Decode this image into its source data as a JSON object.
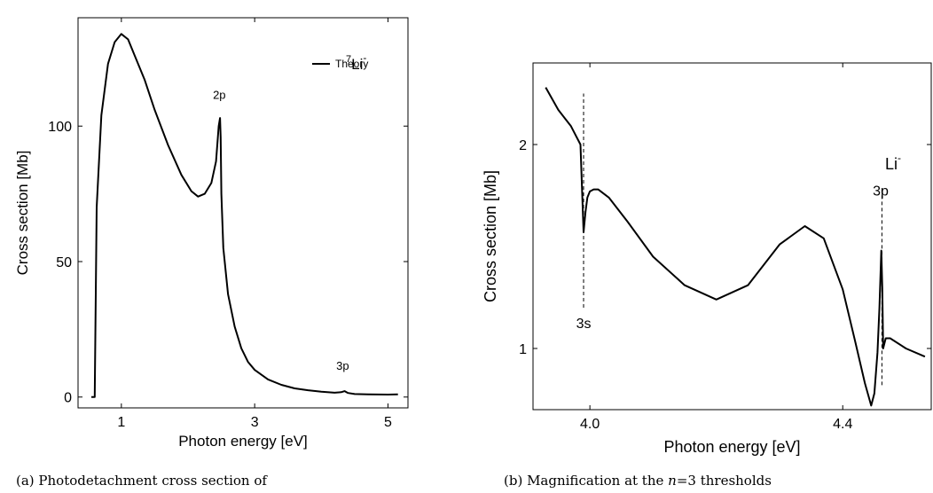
{
  "chart_data": [
    {
      "type": "line",
      "xlabel": "Photon energy [eV]",
      "ylabel": "Cross section [Mb]",
      "xlim": [
        0.35,
        5.3
      ],
      "ylim": [
        -4,
        140
      ],
      "xticks": [
        1,
        3,
        5
      ],
      "xtick_labels": [
        "1",
        "3",
        "5"
      ],
      "yticks": [
        0,
        50,
        100
      ],
      "ytick_labels": [
        "0",
        "50",
        "100"
      ],
      "legend": {
        "entries": [
          "Theory"
        ],
        "position": "top-right"
      },
      "annotations": [
        {
          "text": "2p",
          "x": 2.47,
          "y": 110
        },
        {
          "text": "3p",
          "x": 4.32,
          "y": 10
        }
      ],
      "species_label": {
        "sup": "7",
        "base": "Li",
        "charge": "-"
      },
      "series": [
        {
          "name": "Theory",
          "x": [
            0.55,
            0.6,
            0.63,
            0.7,
            0.8,
            0.9,
            1.0,
            1.1,
            1.2,
            1.35,
            1.5,
            1.7,
            1.9,
            2.05,
            2.15,
            2.25,
            2.35,
            2.42,
            2.46,
            2.48,
            2.49,
            2.5,
            2.53,
            2.6,
            2.7,
            2.8,
            2.9,
            3.0,
            3.2,
            3.4,
            3.6,
            3.8,
            4.0,
            4.2,
            4.3,
            4.35,
            4.4,
            4.5,
            4.7,
            5.0,
            5.15
          ],
          "y": [
            0,
            0,
            70,
            104,
            123,
            131,
            134,
            132,
            126,
            117,
            106,
            93,
            82,
            76,
            74,
            75,
            79,
            87,
            100,
            103,
            96,
            75,
            55,
            38,
            26,
            18,
            13,
            10,
            6.5,
            4.5,
            3.2,
            2.5,
            2,
            1.6,
            1.8,
            2.2,
            1.5,
            1.1,
            1,
            0.9,
            1
          ]
        }
      ]
    },
    {
      "type": "line",
      "xlabel": "Photon energy  [eV]",
      "ylabel": "Cross section  [Mb]",
      "xlim": [
        3.91,
        4.54
      ],
      "ylim": [
        0.7,
        2.4
      ],
      "xticks": [
        4.0,
        4.4
      ],
      "xtick_labels": [
        "4.0",
        "4.4"
      ],
      "yticks": [
        1,
        2
      ],
      "ytick_labels": [
        "1",
        "2"
      ],
      "annotations": [
        {
          "text": "3s",
          "x": 3.99,
          "y": 1.1
        },
        {
          "text": "3p",
          "x": 4.46,
          "y": 1.75
        }
      ],
      "species_label": {
        "base": "Li",
        "charge": "-"
      },
      "thresholds": [
        3.99,
        4.462
      ],
      "series": [
        {
          "name": "",
          "x": [
            3.93,
            3.95,
            3.97,
            3.985,
            3.99,
            3.993,
            3.996,
            4.0,
            4.006,
            4.013,
            4.03,
            4.06,
            4.1,
            4.15,
            4.2,
            4.25,
            4.3,
            4.34,
            4.37,
            4.4,
            4.42,
            4.435,
            4.445,
            4.45,
            4.455,
            4.458,
            4.461,
            4.4625,
            4.464,
            4.468,
            4.475,
            4.5,
            4.53
          ],
          "y": [
            2.28,
            2.17,
            2.09,
            2.0,
            1.57,
            1.67,
            1.74,
            1.77,
            1.78,
            1.78,
            1.74,
            1.62,
            1.45,
            1.31,
            1.24,
            1.31,
            1.51,
            1.6,
            1.54,
            1.29,
            1.03,
            0.83,
            0.72,
            0.78,
            0.98,
            1.2,
            1.48,
            1.3,
            1.0,
            1.05,
            1.05,
            1.0,
            0.96
          ]
        }
      ]
    }
  ],
  "captions": [
    "(a) Photodetachment cross section of",
    "(b) Magnification at the n=3 thresholds"
  ],
  "caption_b_parts": {
    "pre": "(b) Magnification at the ",
    "var": "n",
    "post": "=3 thresholds"
  }
}
